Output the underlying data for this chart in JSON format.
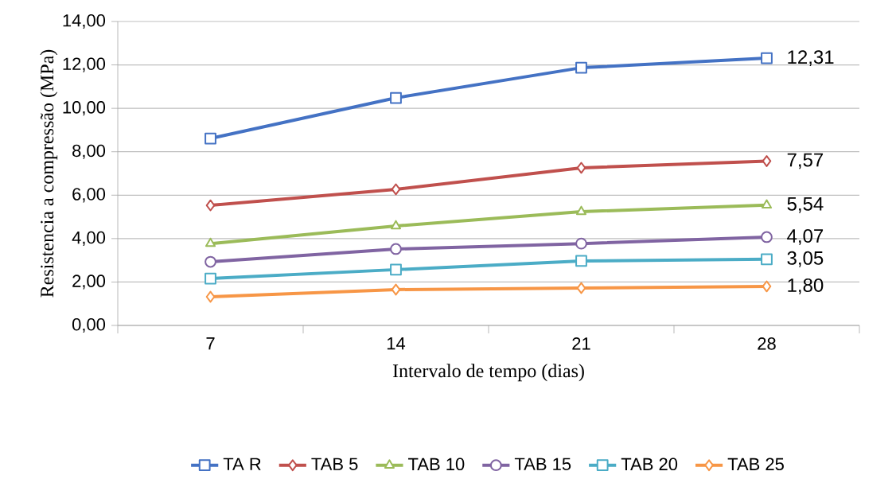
{
  "chart_data": {
    "type": "line",
    "xlabel": "Intervalo de tempo (dias)",
    "ylabel": "Resistencia a compressão (MPa)",
    "categories": [
      "7",
      "14",
      "21",
      "28"
    ],
    "ylim": [
      0,
      14
    ],
    "yticks": [
      {
        "value": 0,
        "label": "0,00"
      },
      {
        "value": 2,
        "label": "2,00"
      },
      {
        "value": 4,
        "label": "4,00"
      },
      {
        "value": 6,
        "label": "6,00"
      },
      {
        "value": 8,
        "label": "8,00"
      },
      {
        "value": 10,
        "label": "10,00"
      },
      {
        "value": 12,
        "label": "12,00"
      },
      {
        "value": 14,
        "label": "14,00"
      }
    ],
    "grid": "y",
    "legend": "bottom",
    "series": [
      {
        "name": "TA R",
        "color": "#4472c4",
        "marker": "square",
        "values": [
          8.61,
          10.48,
          11.87,
          12.31
        ],
        "value_labels": [
          null,
          null,
          null,
          "12,31"
        ]
      },
      {
        "name": "TAB 5",
        "color": "#c0504d",
        "marker": "diamond",
        "values": [
          5.53,
          6.27,
          7.26,
          7.57
        ],
        "value_labels": [
          null,
          null,
          null,
          "7,57"
        ]
      },
      {
        "name": "TAB 10",
        "color": "#9bbb59",
        "marker": "triangle",
        "values": [
          3.77,
          4.58,
          5.24,
          5.54
        ],
        "value_labels": [
          null,
          null,
          null,
          "5,54"
        ]
      },
      {
        "name": "TAB 15",
        "color": "#8064a2",
        "marker": "circle",
        "values": [
          2.93,
          3.52,
          3.77,
          4.07
        ],
        "value_labels": [
          null,
          null,
          null,
          "4,07"
        ]
      },
      {
        "name": "TAB 20",
        "color": "#4bacc6",
        "marker": "square",
        "values": [
          2.16,
          2.57,
          2.97,
          3.05
        ],
        "value_labels": [
          null,
          null,
          null,
          "3,05"
        ]
      },
      {
        "name": "TAB 25",
        "color": "#f79646",
        "marker": "diamond",
        "values": [
          1.32,
          1.65,
          1.72,
          1.8
        ],
        "value_labels": [
          null,
          null,
          null,
          "1,80"
        ]
      }
    ]
  }
}
